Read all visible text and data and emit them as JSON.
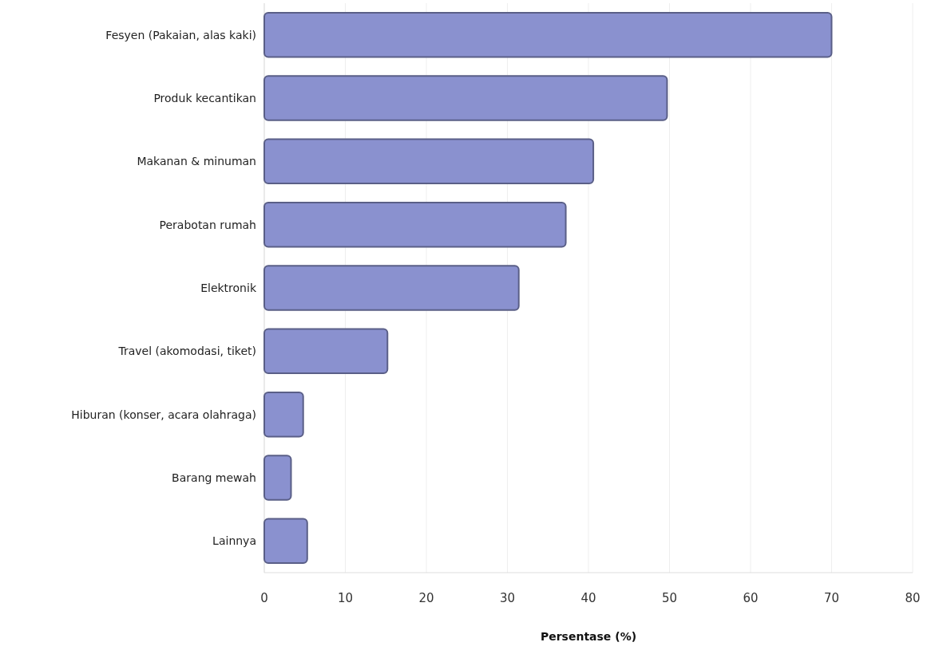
{
  "chart_data": {
    "type": "bar",
    "orientation": "horizontal",
    "xlabel": "Persentase (%)",
    "categories": [
      "Fesyen (Pakaian, alas kaki)",
      "Produk kecantikan",
      "Makanan & minuman",
      "Perabotan rumah",
      "Elektronik",
      "Travel (akomodasi, tiket)",
      "Hiburan (konser, acara olahraga)",
      "Barang mewah",
      "Lainnya"
    ],
    "values": [
      70,
      49.7,
      40.6,
      37.2,
      31.4,
      15.2,
      4.8,
      3.3,
      5.3
    ],
    "color": "#8a91cf",
    "xlim": [
      0,
      80
    ],
    "xticks": [
      0,
      10,
      20,
      30,
      40,
      50,
      60,
      70,
      80
    ],
    "grid": "x"
  }
}
